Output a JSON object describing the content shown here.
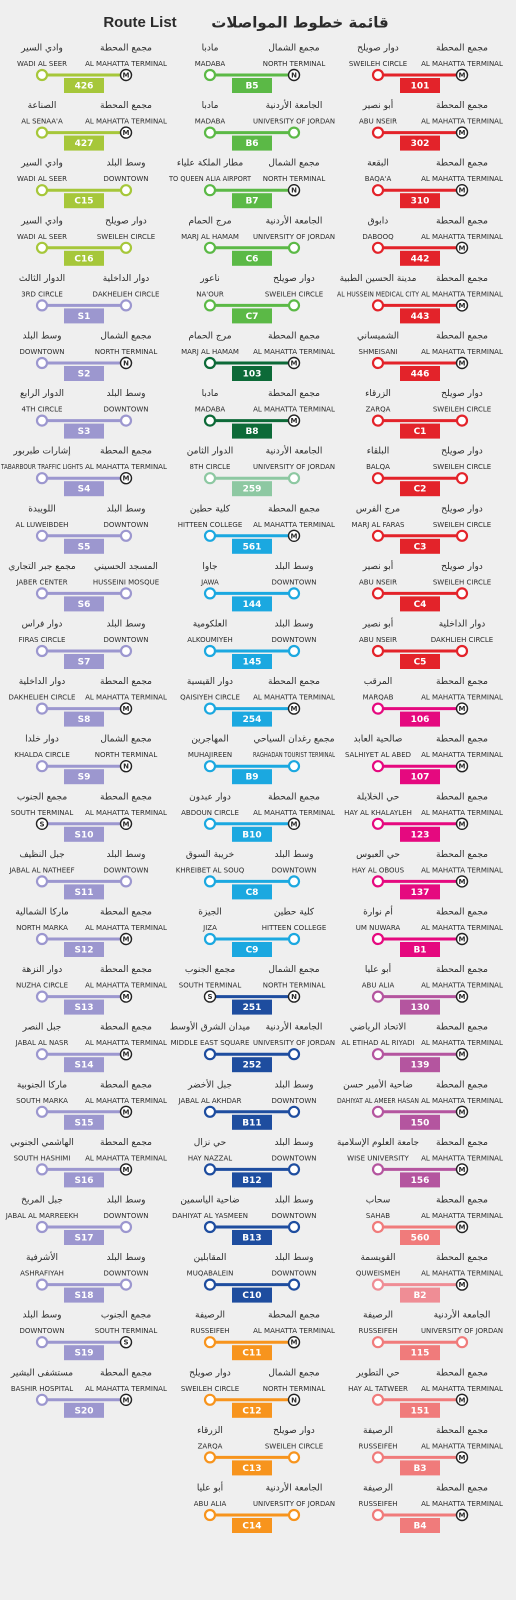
{
  "header": {
    "en": "Route List",
    "ar": "قائمة خطوط المواصلات"
  },
  "columns": [
    {
      "routes": [
        {
          "n": "426",
          "c": "#a6c73a",
          "from": [
            "مجمع المحطة",
            "AL MAHATTA TERMINAL",
            "M"
          ],
          "to": [
            "وادي السير",
            "WADI AL SEER"
          ]
        },
        {
          "n": "427",
          "c": "#a6c73a",
          "from": [
            "مجمع المحطة",
            "AL MAHATTA TERMINAL",
            "M"
          ],
          "to": [
            "الصناعة",
            "AL SENAA'A"
          ]
        },
        {
          "n": "C15",
          "c": "#a6c73a",
          "from": [
            "وسط البلد",
            "DOWNTOWN"
          ],
          "to": [
            "وادي السير",
            "WADI AL SEER"
          ]
        },
        {
          "n": "C16",
          "c": "#a6c73a",
          "from": [
            "دوار صويلح",
            "SWEILEH CIRCLE"
          ],
          "to": [
            "وادي السير",
            "WADI AL SEER"
          ]
        },
        {
          "n": "S1",
          "c": "#9c97cf",
          "from": [
            "دوار الداخلية",
            "DAKHELIEH CIRCLE"
          ],
          "to": [
            "الدوار الثالث",
            "3RD CIRCLE"
          ]
        },
        {
          "n": "S2",
          "c": "#9c97cf",
          "from": [
            "مجمع الشمال",
            "NORTH TERMINAL",
            "N"
          ],
          "to": [
            "وسط البلد",
            "DOWNTOWN"
          ]
        },
        {
          "n": "S3",
          "c": "#9c97cf",
          "from": [
            "وسط البلد",
            "DOWNTOWN"
          ],
          "to": [
            "الدوار الرابع",
            "4TH CIRCLE"
          ]
        },
        {
          "n": "S4",
          "c": "#9c97cf",
          "from": [
            "مجمع المحطة",
            "AL MAHATTA TERMINAL",
            "M"
          ],
          "to": [
            "إشارات طبربور",
            "TABARBOUR TRAFFIC LIGHTS"
          ]
        },
        {
          "n": "S5",
          "c": "#9c97cf",
          "from": [
            "وسط البلد",
            "DOWNTOWN"
          ],
          "to": [
            "اللويبدة",
            "AL LUWEIBDEH"
          ]
        },
        {
          "n": "S6",
          "c": "#9c97cf",
          "from": [
            "المسجد الحسيني",
            "HUSSEINI MOSQUE"
          ],
          "to": [
            "مجمع جبر التجاري",
            "JABER CENTER"
          ]
        },
        {
          "n": "S7",
          "c": "#9c97cf",
          "from": [
            "وسط البلد",
            "DOWNTOWN"
          ],
          "to": [
            "دوار فراس",
            "FIRAS CIRCLE"
          ]
        },
        {
          "n": "S8",
          "c": "#9c97cf",
          "from": [
            "مجمع المحطة",
            "AL MAHATTA TERMINAL",
            "M"
          ],
          "to": [
            "دوار الداخلية",
            "DAKHELIEH CIRCLE"
          ]
        },
        {
          "n": "S9",
          "c": "#9c97cf",
          "from": [
            "مجمع الشمال",
            "NORTH TERMINAL",
            "N"
          ],
          "to": [
            "دوار خلدا",
            "KHALDA CIRCLE"
          ]
        },
        {
          "n": "S10",
          "c": "#9c97cf",
          "from": [
            "مجمع المحطة",
            "AL MAHATTA TERMINAL",
            "M"
          ],
          "to": [
            "مجمع الجنوب",
            "SOUTH TERMINAL",
            "S"
          ]
        },
        {
          "n": "S11",
          "c": "#9c97cf",
          "from": [
            "وسط البلد",
            "DOWNTOWN"
          ],
          "to": [
            "جبل النظيف",
            "JABAL AL NATHEEF"
          ]
        },
        {
          "n": "S12",
          "c": "#9c97cf",
          "from": [
            "مجمع المحطة",
            "AL MAHATTA TERMINAL",
            "M"
          ],
          "to": [
            "ماركا الشمالية",
            "NORTH MARKA"
          ]
        },
        {
          "n": "S13",
          "c": "#9c97cf",
          "from": [
            "مجمع المحطة",
            "AL MAHATTA TERMINAL",
            "M"
          ],
          "to": [
            "دوار النزهة",
            "NUZHA CIRCLE"
          ]
        },
        {
          "n": "S14",
          "c": "#9c97cf",
          "from": [
            "مجمع المحطة",
            "AL MAHATTA TERMINAL",
            "M"
          ],
          "to": [
            "جبل النصر",
            "JABAL AL NASR"
          ]
        },
        {
          "n": "S15",
          "c": "#9c97cf",
          "from": [
            "مجمع المحطة",
            "AL MAHATTA TERMINAL",
            "M"
          ],
          "to": [
            "ماركا الجنوبية",
            "SOUTH MARKA"
          ]
        },
        {
          "n": "S16",
          "c": "#9c97cf",
          "from": [
            "مجمع المحطة",
            "AL MAHATTA TERMINAL",
            "M"
          ],
          "to": [
            "الهاشمي الجنوبي",
            "SOUTH HASHIMI"
          ]
        },
        {
          "n": "S17",
          "c": "#9c97cf",
          "from": [
            "وسط البلد",
            "DOWNTOWN"
          ],
          "to": [
            "جبل المريخ",
            "JABAL AL MARREEKH"
          ]
        },
        {
          "n": "S18",
          "c": "#9c97cf",
          "from": [
            "وسط البلد",
            "DOWNTOWN"
          ],
          "to": [
            "الأشرفية",
            "ASHRAFIYAH"
          ]
        },
        {
          "n": "S19",
          "c": "#9c97cf",
          "from": [
            "مجمع الجنوب",
            "SOUTH TERMINAL",
            "S"
          ],
          "to": [
            "وسط البلد",
            "DOWNTOWN"
          ]
        },
        {
          "n": "S20",
          "c": "#9c97cf",
          "from": [
            "مجمع المحطة",
            "AL MAHATTA TERMINAL",
            "M"
          ],
          "to": [
            "مستشفى البشير",
            "BASHIR HOSPITAL"
          ]
        }
      ]
    },
    {
      "routes": [
        {
          "n": "B5",
          "c": "#5bb946",
          "from": [
            "مجمع الشمال",
            "NORTH TERMINAL",
            "N"
          ],
          "to": [
            "مادبا",
            "MADABA"
          ]
        },
        {
          "n": "B6",
          "c": "#5bb946",
          "from": [
            "الجامعة الأردنية",
            "UNIVERSITY OF JORDAN"
          ],
          "to": [
            "مادبا",
            "MADABA"
          ]
        },
        {
          "n": "B7",
          "c": "#5bb946",
          "from": [
            "مجمع الشمال",
            "NORTH TERMINAL",
            "N"
          ],
          "to": [
            "مطار الملكة علياء",
            "TO QUEEN ALIA AIRPORT"
          ]
        },
        {
          "n": "C6",
          "c": "#5bb946",
          "from": [
            "الجامعة الأردنية",
            "UNIVERSITY OF JORDAN"
          ],
          "to": [
            "مرج الحمام",
            "MARJ AL HAMAM"
          ]
        },
        {
          "n": "C7",
          "c": "#5bb946",
          "from": [
            "دوار صويلح",
            "SWEILEH CIRCLE"
          ],
          "to": [
            "ناعور",
            "NA'OUR"
          ]
        },
        {
          "n": "103",
          "c": "#0d6a38",
          "from": [
            "مجمع المحطة",
            "AL MAHATTA TERMINAL",
            "M"
          ],
          "to": [
            "مرج الحمام",
            "MARJ AL HAMAM"
          ]
        },
        {
          "n": "B8",
          "c": "#0d6a38",
          "from": [
            "مجمع المحطة",
            "AL MAHATTA TERMINAL",
            "M"
          ],
          "to": [
            "مادبا",
            "MADABA"
          ]
        },
        {
          "n": "259",
          "c": "#8dc8a2",
          "from": [
            "الجامعة الأردنية",
            "UNIVERSITY OF JORDAN"
          ],
          "to": [
            "الدوار الثامن",
            "8TH CIRCLE"
          ]
        },
        {
          "n": "561",
          "c": "#1ba8e0",
          "from": [
            "مجمع المحطة",
            "AL MAHATTA TERMINAL",
            "M"
          ],
          "to": [
            "كلية حطين",
            "HITTEEN COLLEGE"
          ]
        },
        {
          "n": "144",
          "c": "#1ba8e0",
          "from": [
            "وسط البلد",
            "DOWNTOWN"
          ],
          "to": [
            "جاوا",
            "JAWA"
          ]
        },
        {
          "n": "145",
          "c": "#1ba8e0",
          "from": [
            "وسط البلد",
            "DOWNTOWN"
          ],
          "to": [
            "العلكومية",
            "ALKOUMIYEH"
          ]
        },
        {
          "n": "254",
          "c": "#1ba8e0",
          "from": [
            "مجمع المحطة",
            "AL MAHATTA TERMINAL",
            "M"
          ],
          "to": [
            "دوار القيسية",
            "QAISIYEH CIRCLE"
          ]
        },
        {
          "n": "B9",
          "c": "#1ba8e0",
          "from": [
            "مجمع رغدان السياحي",
            "RAGHADAN TOURIST TERMINAL"
          ],
          "to": [
            "المهاجرين",
            "MUHAJIREEN"
          ]
        },
        {
          "n": "B10",
          "c": "#1ba8e0",
          "from": [
            "مجمع المحطة",
            "AL MAHATTA TERMINAL",
            "M"
          ],
          "to": [
            "دوار عبدون",
            "ABDOUN CIRCLE"
          ]
        },
        {
          "n": "C8",
          "c": "#1ba8e0",
          "from": [
            "وسط البلد",
            "DOWNTOWN"
          ],
          "to": [
            "خريبة السوق",
            "KHREIBET AL SOUQ"
          ]
        },
        {
          "n": "C9",
          "c": "#1ba8e0",
          "from": [
            "كلية حطين",
            "HITTEEN COLLEGE"
          ],
          "to": [
            "الجيزة",
            "JIZA"
          ]
        },
        {
          "n": "251",
          "c": "#1e4d9f",
          "from": [
            "مجمع الشمال",
            "NORTH TERMINAL",
            "N"
          ],
          "to": [
            "مجمع الجنوب",
            "SOUTH TERMINAL",
            "S"
          ]
        },
        {
          "n": "252",
          "c": "#1e4d9f",
          "from": [
            "الجامعة الأردنية",
            "UNIVERSITY OF JORDAN"
          ],
          "to": [
            "ميدان الشرق الأوسط",
            "MIDDLE EAST SQUARE"
          ]
        },
        {
          "n": "B11",
          "c": "#1e4d9f",
          "from": [
            "وسط البلد",
            "DOWNTOWN"
          ],
          "to": [
            "جبل الأخضر",
            "JABAL AL AKHDAR"
          ]
        },
        {
          "n": "B12",
          "c": "#1e4d9f",
          "from": [
            "وسط البلد",
            "DOWNTOWN"
          ],
          "to": [
            "حي نزال",
            "HAY NAZZAL"
          ]
        },
        {
          "n": "B13",
          "c": "#1e4d9f",
          "from": [
            "وسط البلد",
            "DOWNTOWN"
          ],
          "to": [
            "ضاحية الياسمين",
            "DAHIYAT AL YASMEEN"
          ]
        },
        {
          "n": "C10",
          "c": "#1e4d9f",
          "from": [
            "وسط البلد",
            "DOWNTOWN"
          ],
          "to": [
            "المقابلين",
            "MUQABALEIN"
          ]
        },
        {
          "n": "C11",
          "c": "#f7941d",
          "from": [
            "مجمع المحطة",
            "AL MAHATTA TERMINAL",
            "M"
          ],
          "to": [
            "الرصيفة",
            "RUSSEIFEH"
          ]
        },
        {
          "n": "C12",
          "c": "#f7941d",
          "from": [
            "مجمع الشمال",
            "NORTH TERMINAL",
            "N"
          ],
          "to": [
            "دوار صويلح",
            "SWEILEH CIRCLE"
          ]
        },
        {
          "n": "C13",
          "c": "#f7941d",
          "from": [
            "دوار صويلح",
            "SWEILEH CIRCLE"
          ],
          "to": [
            "الزرقاء",
            "ZARQA"
          ]
        },
        {
          "n": "C14",
          "c": "#f7941d",
          "from": [
            "الجامعة الأردنية",
            "UNIVERSITY OF JORDAN"
          ],
          "to": [
            "أبو عليا",
            "ABU ALIA"
          ]
        }
      ]
    },
    {
      "routes": [
        {
          "n": "101",
          "c": "#e3232a",
          "from": [
            "مجمع المحطة",
            "AL MAHATTA TERMINAL",
            "M"
          ],
          "to": [
            "دوار صويلح",
            "SWEILEH CIRCLE"
          ]
        },
        {
          "n": "302",
          "c": "#e3232a",
          "from": [
            "مجمع المحطة",
            "AL MAHATTA TERMINAL",
            "M"
          ],
          "to": [
            "أبو نصير",
            "ABU NSEIR"
          ]
        },
        {
          "n": "310",
          "c": "#e3232a",
          "from": [
            "مجمع المحطة",
            "AL MAHATTA TERMINAL",
            "M"
          ],
          "to": [
            "البقعة",
            "BAQA'A"
          ]
        },
        {
          "n": "442",
          "c": "#e3232a",
          "from": [
            "مجمع المحطة",
            "AL MAHATTA TERMINAL",
            "M"
          ],
          "to": [
            "دابوق",
            "DABOOQ"
          ]
        },
        {
          "n": "443",
          "c": "#e3232a",
          "from": [
            "مجمع المحطة",
            "AL MAHATTA TERMINAL",
            "M"
          ],
          "to": [
            "مدينة الحسين الطبية",
            "AL HUSSEIN MEDICAL CITY"
          ]
        },
        {
          "n": "446",
          "c": "#e3232a",
          "from": [
            "مجمع المحطة",
            "AL MAHATTA TERMINAL",
            "M"
          ],
          "to": [
            "الشميساني",
            "SHMEISANI"
          ]
        },
        {
          "n": "C1",
          "c": "#e3232a",
          "from": [
            "دوار صويلح",
            "SWEILEH CIRCLE"
          ],
          "to": [
            "الزرقاء",
            "ZARQA"
          ]
        },
        {
          "n": "C2",
          "c": "#e3232a",
          "from": [
            "دوار صويلح",
            "SWEILEH CIRCLE"
          ],
          "to": [
            "البلقاء",
            "BALQA"
          ]
        },
        {
          "n": "C3",
          "c": "#e3232a",
          "from": [
            "دوار صويلح",
            "SWEILEH CIRCLE"
          ],
          "to": [
            "مرج الفرس",
            "MARJ AL FARAS"
          ]
        },
        {
          "n": "C4",
          "c": "#e3232a",
          "from": [
            "دوار صويلح",
            "SWEILEH CIRCLE"
          ],
          "to": [
            "أبو نصير",
            "ABU NSEIR"
          ]
        },
        {
          "n": "C5",
          "c": "#e3232a",
          "from": [
            "دوار الداخلية",
            "DAKHLIEH CIRCLE"
          ],
          "to": [
            "أبو نصير",
            "ABU NSEIR"
          ]
        },
        {
          "n": "106",
          "c": "#e5097f",
          "from": [
            "مجمع المحطة",
            "AL MAHATTA TERMINAL",
            "M"
          ],
          "to": [
            "المرقب",
            "MARQAB"
          ]
        },
        {
          "n": "107",
          "c": "#e5097f",
          "from": [
            "مجمع المحطة",
            "AL MAHATTA TERMINAL",
            "M"
          ],
          "to": [
            "صالحية العابد",
            "SALHIYET AL ABED"
          ]
        },
        {
          "n": "123",
          "c": "#e5097f",
          "from": [
            "مجمع المحطة",
            "AL MAHATTA TERMINAL",
            "M"
          ],
          "to": [
            "حي الخلايلة",
            "HAY AL KHALAYLEH"
          ]
        },
        {
          "n": "137",
          "c": "#e5097f",
          "from": [
            "مجمع المحطة",
            "AL MAHATTA TERMINAL",
            "M"
          ],
          "to": [
            "حي العبوس",
            "HAY AL OBOUS"
          ]
        },
        {
          "n": "B1",
          "c": "#e5097f",
          "from": [
            "مجمع المحطة",
            "AL MAHATTA TERMINAL",
            "M"
          ],
          "to": [
            "أم نوارة",
            "UM NUWARA"
          ]
        },
        {
          "n": "130",
          "c": "#b4559f",
          "from": [
            "مجمع المحطة",
            "AL MAHATTA TERMINAL",
            "M"
          ],
          "to": [
            "أبو عليا",
            "ABU ALIA"
          ]
        },
        {
          "n": "139",
          "c": "#b4559f",
          "from": [
            "مجمع المحطة",
            "AL MAHATTA TERMINAL",
            "M"
          ],
          "to": [
            "الاتحاد الرياضي",
            "AL ETIHAD AL RIYADI"
          ]
        },
        {
          "n": "150",
          "c": "#b4559f",
          "from": [
            "مجمع المحطة",
            "AL MAHATTA TERMINAL",
            "M"
          ],
          "to": [
            "ضاحية الأمير حسن",
            "DAHIYAT AL AMEER HASAN"
          ]
        },
        {
          "n": "156",
          "c": "#b4559f",
          "from": [
            "مجمع المحطة",
            "AL MAHATTA TERMINAL",
            "M"
          ],
          "to": [
            "جامعة العلوم الإسلامية",
            "WISE UNIVERSITY"
          ]
        },
        {
          "n": "560",
          "c": "#f07b7b",
          "from": [
            "مجمع المحطة",
            "AL MAHATTA TERMINAL",
            "M"
          ],
          "to": [
            "سحاب",
            "SAHAB"
          ]
        },
        {
          "n": "B2",
          "c": "#ef8d95",
          "from": [
            "مجمع المحطة",
            "AL MAHATTA TERMINAL",
            "M"
          ],
          "to": [
            "القويسمة",
            "QUWEISMEH"
          ]
        },
        {
          "n": "115",
          "c": "#f07b7b",
          "from": [
            "الجامعة الأردنية",
            "UNIVERSITY OF JORDAN"
          ],
          "to": [
            "الرصيفة",
            "RUSSEIFEH"
          ]
        },
        {
          "n": "151",
          "c": "#f07b7b",
          "from": [
            "مجمع المحطة",
            "AL MAHATTA TERMINAL",
            "M"
          ],
          "to": [
            "حي التطوير",
            "HAY AL TATWEER"
          ]
        },
        {
          "n": "B3",
          "c": "#f07b7b",
          "from": [
            "مجمع المحطة",
            "AL MAHATTA TERMINAL",
            "M"
          ],
          "to": [
            "الرصيفة",
            "RUSSEIFEH"
          ]
        },
        {
          "n": "B4",
          "c": "#f07b7b",
          "from": [
            "مجمع المحطة",
            "AL MAHATTA TERMINAL",
            "M"
          ],
          "to": [
            "الرصيفة",
            "RUSSEIFEH"
          ]
        }
      ]
    }
  ]
}
